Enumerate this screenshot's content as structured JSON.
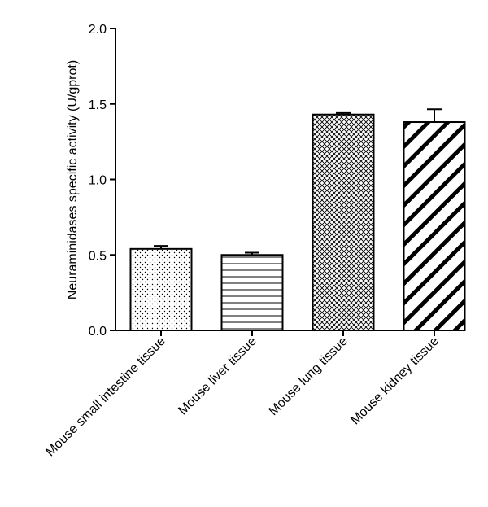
{
  "chart_data": {
    "type": "bar",
    "title": "",
    "xlabel": "",
    "ylabel": "Neuraminidases specific activity (U/gprot)",
    "ylim": [
      0,
      2.0
    ],
    "yticks": [
      "0.0",
      "0.5",
      "1.0",
      "1.5",
      "2.0"
    ],
    "grid": false,
    "legend": "none",
    "categories": [
      "Mouse small intestine  tissue",
      "Mouse liver tissue",
      "Mouse lung tissue",
      "Mouse kidney tissue"
    ],
    "values": [
      0.54,
      0.5,
      1.43,
      1.38
    ],
    "errors": [
      0.02,
      0.015,
      0.01,
      0.085
    ],
    "patterns": [
      "dots",
      "horizontal-lines",
      "crosshatch",
      "diagonal-stripes"
    ],
    "colors": {
      "stroke": "#000000",
      "fill": "#ffffff"
    }
  }
}
